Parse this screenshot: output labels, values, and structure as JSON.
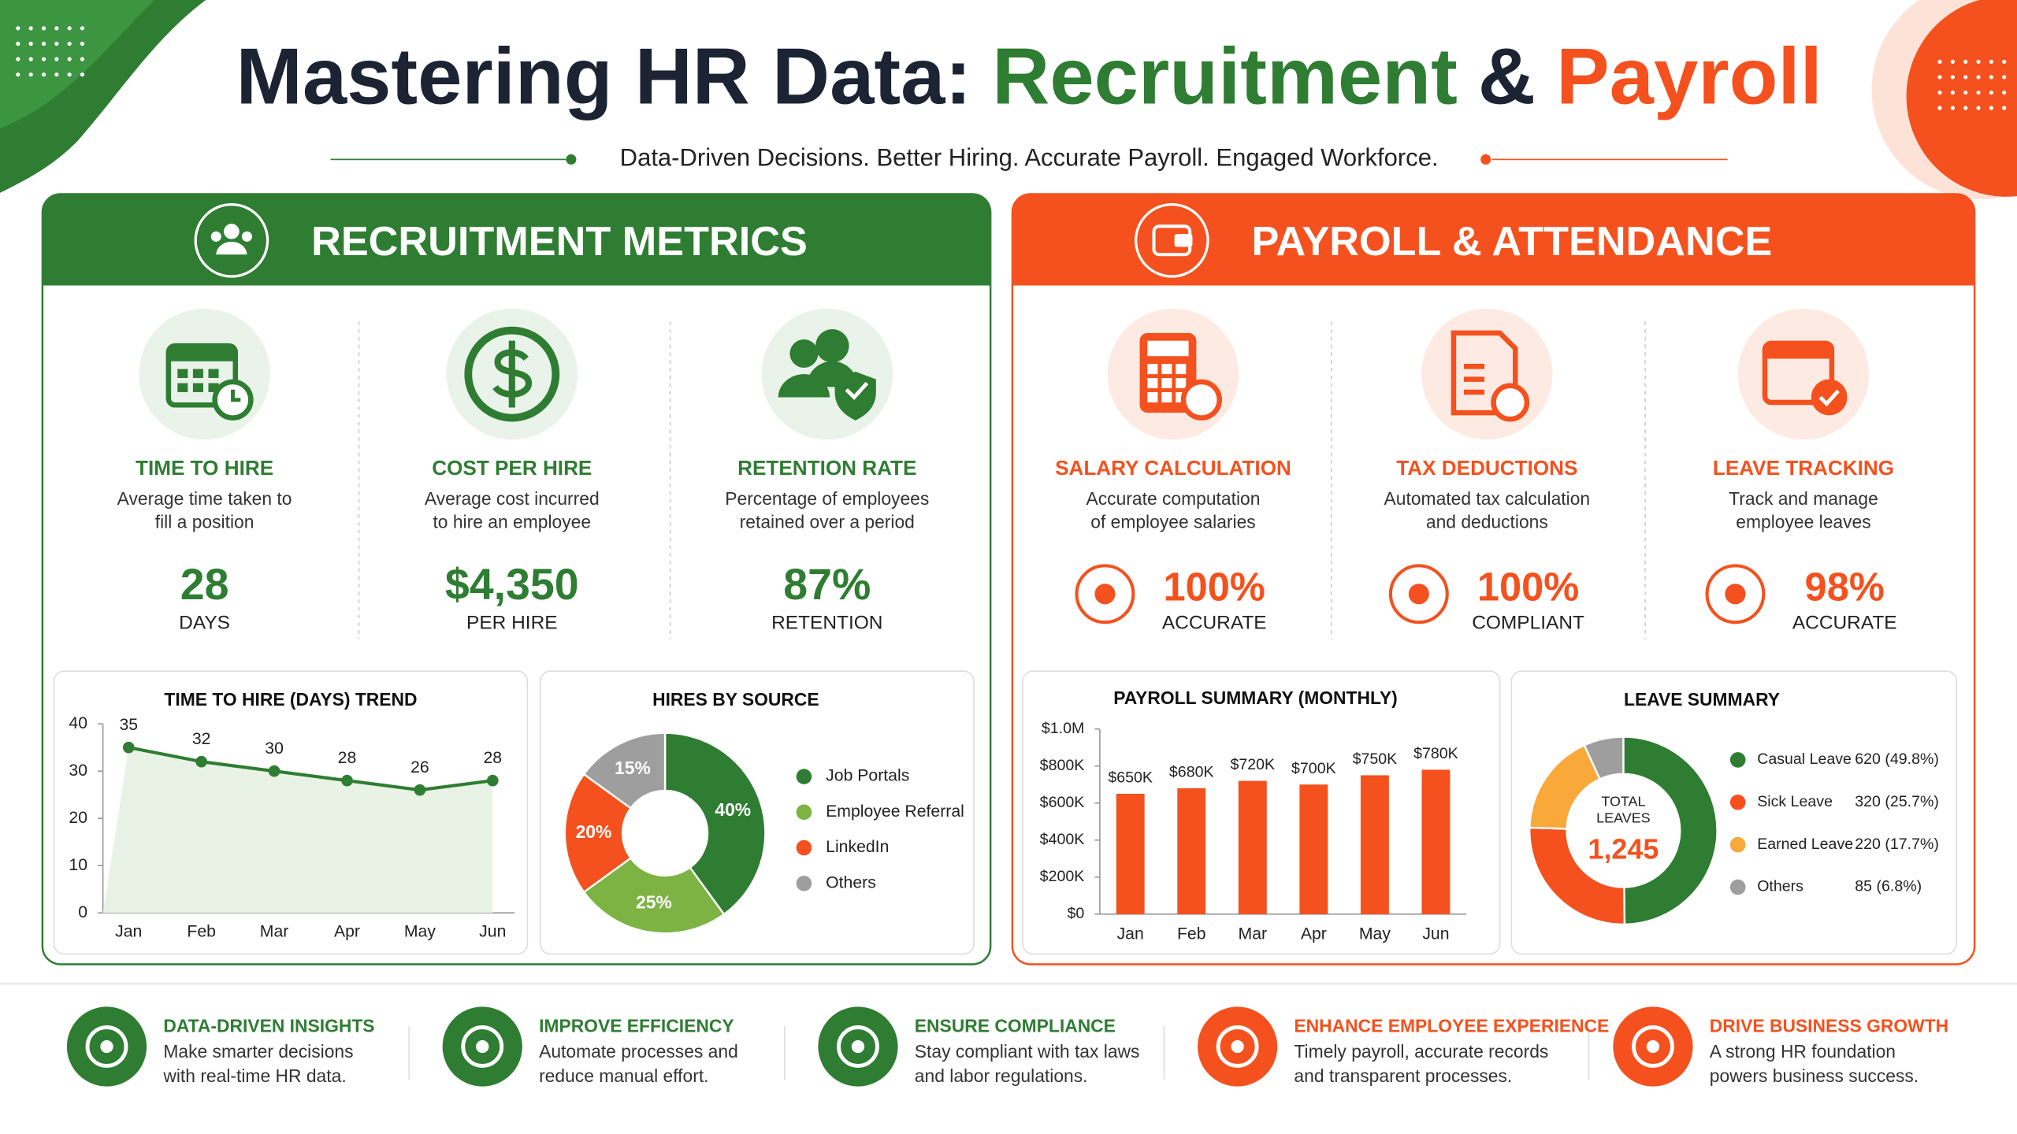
{
  "header": {
    "title_parts": [
      "Mastering HR Data:",
      "Recruitment",
      "&",
      "Payroll"
    ],
    "subtitle": "Data-Driven Decisions. Better Hiring. Accurate Payroll. Engaged Workforce."
  },
  "recruitment": {
    "title": "RECRUITMENT METRICS",
    "metrics": [
      {
        "title": "TIME TO HIRE",
        "description": [
          "Average time taken to",
          "fill a position"
        ],
        "value": "28",
        "unit": "DAYS"
      },
      {
        "title": "COST PER HIRE",
        "description": [
          "Average cost incurred",
          "to hire an employee"
        ],
        "value": "$4,350",
        "unit": "PER HIRE"
      },
      {
        "title": "RETENTION RATE",
        "description": [
          "Percentage of employees",
          "retained over a period"
        ],
        "value": "87%",
        "unit": "RETENTION"
      }
    ]
  },
  "payroll": {
    "title": "PAYROLL & ATTENDANCE",
    "metrics": [
      {
        "title": "SALARY CALCULATION",
        "description": [
          "Accurate computation",
          "of employee salaries"
        ],
        "value": "100%",
        "unit": "ACCURATE"
      },
      {
        "title": "TAX DEDUCTIONS",
        "description": [
          "Automated tax calculation",
          "and deductions"
        ],
        "value": "100%",
        "unit": "COMPLIANT"
      },
      {
        "title": "LEAVE TRACKING",
        "description": [
          "Track and manage",
          "employee leaves"
        ],
        "value": "98%",
        "unit": "ACCURATE"
      }
    ]
  },
  "chart_data": [
    {
      "type": "line",
      "title": "TIME TO HIRE (DAYS) TREND",
      "categories": [
        "Jan",
        "Feb",
        "Mar",
        "Apr",
        "May",
        "Jun"
      ],
      "values": [
        35,
        32,
        30,
        28,
        26,
        28
      ],
      "color": "#2e7d32",
      "ylim": [
        0,
        40
      ],
      "yticks": [
        0,
        10,
        20,
        30,
        40
      ]
    },
    {
      "type": "pie",
      "title": "HIRES BY SOURCE",
      "categories": [
        "Job Portals",
        "Employee Referral",
        "LinkedIn",
        "Others"
      ],
      "values": [
        40,
        25,
        20,
        15
      ],
      "value_labels": [
        "40%",
        "25%",
        "20%",
        "15%"
      ],
      "colors": [
        "#2e7d32",
        "#7cb342",
        "#f4511e",
        "#9e9e9e"
      ]
    },
    {
      "type": "bar",
      "title": "PAYROLL SUMMARY (MONTHLY)",
      "categories": [
        "Jan",
        "Feb",
        "Mar",
        "Apr",
        "May",
        "Jun"
      ],
      "values": [
        650000,
        680000,
        720000,
        700000,
        750000,
        780000
      ],
      "value_labels": [
        "$650K",
        "$680K",
        "$720K",
        "$700K",
        "$750K",
        "$780K"
      ],
      "color": "#f4511e",
      "ylim": [
        0,
        1000000
      ],
      "yticks": [
        {
          "value": 0,
          "label": "$0"
        },
        {
          "value": 200000,
          "label": "$200K"
        },
        {
          "value": 400000,
          "label": "$400K"
        },
        {
          "value": 600000,
          "label": "$600K"
        },
        {
          "value": 800000,
          "label": "$800K"
        },
        {
          "value": 1000000,
          "label": "$1.0M"
        }
      ]
    },
    {
      "type": "pie",
      "title": "LEAVE SUMMARY",
      "categories": [
        "Casual Leave",
        "Sick Leave",
        "Earned Leave",
        "Others"
      ],
      "values": [
        620,
        320,
        220,
        85
      ],
      "value_labels": [
        "620 (49.8%)",
        "320 (25.7%)",
        "220 (17.7%)",
        "85 (6.8%)"
      ],
      "colors": [
        "#2e7d32",
        "#f4511e",
        "#f9a83a",
        "#9e9e9e"
      ],
      "total_label": [
        "TOTAL",
        "LEAVES"
      ],
      "total": "1,245"
    }
  ],
  "footer": [
    {
      "title": "DATA-DRIVEN INSIGHTS",
      "description": [
        "Make smarter decisions",
        "with real-time HR data."
      ]
    },
    {
      "title": "IMPROVE EFFICIENCY",
      "description": [
        "Automate processes and",
        "reduce manual effort."
      ]
    },
    {
      "title": "ENSURE COMPLIANCE",
      "description": [
        "Stay compliant with tax laws",
        "and labor regulations."
      ]
    },
    {
      "title": "ENHANCE EMPLOYEE EXPERIENCE",
      "description": [
        "Timely payroll, accurate records",
        "and transparent processes."
      ]
    },
    {
      "title": "DRIVE BUSINESS GROWTH",
      "description": [
        "A strong HR foundation",
        "powers business success."
      ]
    }
  ]
}
